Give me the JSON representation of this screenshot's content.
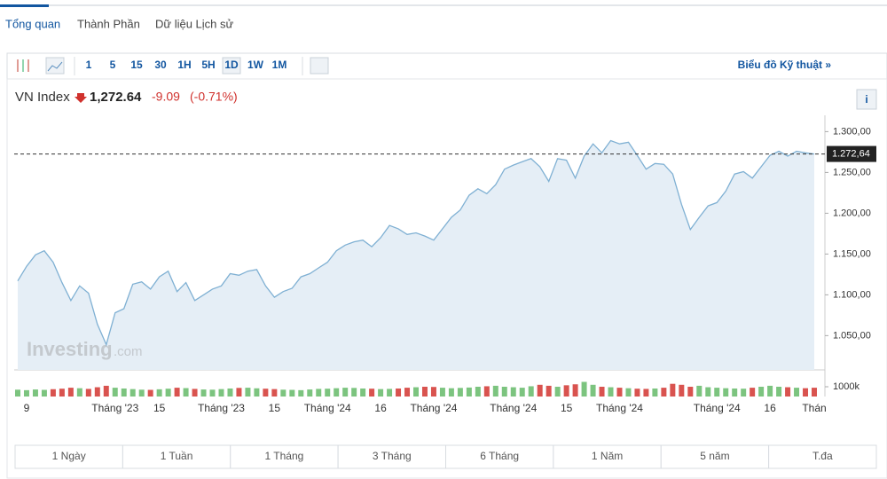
{
  "tabs": [
    "Tổng quan",
    "Thành Phần",
    "Dữ liệu Lịch sử"
  ],
  "active_tab": 0,
  "toolbar": {
    "intervals": [
      "1",
      "5",
      "15",
      "30",
      "1H",
      "5H",
      "1D",
      "1W",
      "1M"
    ],
    "active_interval": "1D",
    "technical_link": "Biểu đồ Kỹ thuật »"
  },
  "header": {
    "name": "VN Index",
    "price": "1,272.64",
    "change": "-9.09",
    "change_pct": "(-0.71%)",
    "info": "i"
  },
  "watermark": {
    "brand": "Investing",
    "suffix": ".com"
  },
  "ranges": [
    "1 Ngày",
    "1 Tuần",
    "1 Tháng",
    "3 Tháng",
    "6 Tháng",
    "1 Năm",
    "5 năm",
    "T.đa"
  ],
  "chart_data": {
    "type": "line",
    "categories": [
      null,
      "9",
      null,
      null,
      null,
      null,
      null,
      null,
      null,
      null,
      null,
      "Tháng '23",
      null,
      null,
      null,
      null,
      "15",
      null,
      null,
      null,
      null,
      null,
      null,
      "Tháng '23",
      null,
      null,
      null,
      null,
      null,
      "15",
      null,
      null,
      null,
      null,
      null,
      "Tháng '24",
      null,
      null,
      null,
      null,
      null,
      "16",
      null,
      null,
      null,
      null,
      null,
      "Tháng '24",
      null,
      null,
      null,
      null,
      null,
      null,
      null,
      null,
      "Tháng '24",
      null,
      null,
      null,
      null,
      null,
      "15",
      null,
      null,
      null,
      null,
      null,
      "Tháng '24",
      null,
      null,
      null,
      null,
      null,
      null,
      null,
      null,
      null,
      null,
      "Tháng '24",
      null,
      null,
      null,
      null,
      null,
      "16",
      null,
      null,
      null,
      null,
      "Thán"
    ],
    "series": [
      {
        "color": "#7fb0d3",
        "fill": "#e5eef6",
        "values": [
          1117,
          1135,
          1149,
          1154,
          1140,
          1115,
          1093,
          1111,
          1102,
          1064,
          1039,
          1078,
          1083,
          1113,
          1116,
          1107,
          1122,
          1129,
          1104,
          1115,
          1093,
          1100,
          1107,
          1111,
          1126,
          1124,
          1129,
          1131,
          1111,
          1097,
          1104,
          1108,
          1122,
          1126,
          1133,
          1140,
          1154,
          1161,
          1165,
          1167,
          1159,
          1170,
          1185,
          1181,
          1174,
          1176,
          1172,
          1167,
          1181,
          1195,
          1204,
          1222,
          1230,
          1224,
          1235,
          1254,
          1259,
          1263,
          1267,
          1257,
          1239,
          1267,
          1265,
          1243,
          1270,
          1285,
          1274,
          1289,
          1285,
          1287,
          1271,
          1254,
          1261,
          1260,
          1248,
          1211,
          1180,
          1195,
          1209,
          1213,
          1227,
          1248,
          1251,
          1243,
          1257,
          1271,
          1276,
          1270,
          1276,
          1274,
          1272.64
        ]
      }
    ],
    "ylim": [
      1008,
      1320
    ],
    "yticks": [
      {
        "value": 1050,
        "label": "1.050,00"
      },
      {
        "value": 1100,
        "label": "1.100,00"
      },
      {
        "value": 1150,
        "label": "1.150,00"
      },
      {
        "value": 1200,
        "label": "1.200,00"
      },
      {
        "value": 1250,
        "label": "1.250,00"
      },
      {
        "value": 1300,
        "label": "1.300,00"
      }
    ],
    "last_label": "1.272,64",
    "volume": {
      "up_color": "#7cc47f",
      "down_color": "#d9534f",
      "ylim": [
        0,
        2000
      ],
      "yticks": [
        {
          "value": 1000,
          "label": "1000k"
        }
      ],
      "values": [
        700,
        650,
        720,
        680,
        750,
        800,
        900,
        850,
        780,
        950,
        1100,
        900,
        820,
        760,
        700,
        680,
        740,
        800,
        900,
        860,
        780,
        720,
        700,
        760,
        820,
        880,
        900,
        840,
        800,
        760,
        700,
        680,
        650,
        720,
        780,
        800,
        850,
        900,
        880,
        820,
        800,
        760,
        780,
        820,
        900,
        950,
        1000,
        980,
        900,
        850,
        880,
        920,
        1000,
        1050,
        1100,
        1000,
        950,
        900,
        1050,
        1200,
        1100,
        1000,
        1150,
        1250,
        1500,
        1200,
        1000,
        950,
        900,
        850,
        800,
        780,
        820,
        900,
        1300,
        1200,
        1000,
        1100,
        950,
        900,
        850,
        820,
        800,
        900,
        1000,
        1100,
        1000,
        950,
        900,
        850,
        900
      ]
    }
  }
}
